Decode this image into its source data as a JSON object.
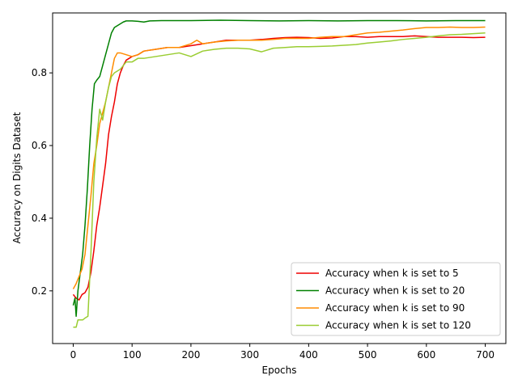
{
  "chart_data": {
    "type": "line",
    "title": "",
    "xlabel": "Epochs",
    "ylabel": "Accuracy on Digits Dataset",
    "xlim": [
      -35,
      735
    ],
    "ylim": [
      0.055,
      0.965
    ],
    "xticks": [
      0,
      100,
      200,
      300,
      400,
      500,
      600,
      700
    ],
    "yticks": [
      0.2,
      0.4,
      0.6,
      0.8
    ],
    "ytick_labels": [
      "0.2",
      "0.4",
      "0.6",
      "0.8"
    ],
    "grid": false,
    "legend_position": "lower-right",
    "series": [
      {
        "name": "Accuracy when k is set to 5",
        "color": "#ee0000",
        "points": [
          [
            0,
            0.19
          ],
          [
            5,
            0.18
          ],
          [
            10,
            0.175
          ],
          [
            15,
            0.19
          ],
          [
            20,
            0.195
          ],
          [
            25,
            0.21
          ],
          [
            30,
            0.25
          ],
          [
            35,
            0.31
          ],
          [
            40,
            0.38
          ],
          [
            45,
            0.43
          ],
          [
            50,
            0.49
          ],
          [
            55,
            0.55
          ],
          [
            60,
            0.63
          ],
          [
            65,
            0.68
          ],
          [
            70,
            0.72
          ],
          [
            75,
            0.77
          ],
          [
            80,
            0.8
          ],
          [
            85,
            0.82
          ],
          [
            90,
            0.835
          ],
          [
            100,
            0.845
          ],
          [
            110,
            0.85
          ],
          [
            120,
            0.86
          ],
          [
            140,
            0.865
          ],
          [
            160,
            0.87
          ],
          [
            180,
            0.87
          ],
          [
            200,
            0.875
          ],
          [
            220,
            0.88
          ],
          [
            240,
            0.885
          ],
          [
            260,
            0.89
          ],
          [
            280,
            0.89
          ],
          [
            300,
            0.89
          ],
          [
            320,
            0.892
          ],
          [
            340,
            0.895
          ],
          [
            360,
            0.897
          ],
          [
            380,
            0.898
          ],
          [
            400,
            0.897
          ],
          [
            420,
            0.895
          ],
          [
            440,
            0.896
          ],
          [
            460,
            0.9
          ],
          [
            480,
            0.9
          ],
          [
            500,
            0.898
          ],
          [
            520,
            0.9
          ],
          [
            540,
            0.9
          ],
          [
            560,
            0.9
          ],
          [
            580,
            0.902
          ],
          [
            600,
            0.9
          ],
          [
            620,
            0.898
          ],
          [
            640,
            0.898
          ],
          [
            660,
            0.898
          ],
          [
            680,
            0.897
          ],
          [
            700,
            0.898
          ]
        ]
      },
      {
        "name": "Accuracy when k is set to 20",
        "color": "#008000",
        "points": [
          [
            0,
            0.16
          ],
          [
            3,
            0.18
          ],
          [
            5,
            0.13
          ],
          [
            8,
            0.2
          ],
          [
            12,
            0.25
          ],
          [
            16,
            0.3
          ],
          [
            20,
            0.38
          ],
          [
            24,
            0.48
          ],
          [
            28,
            0.6
          ],
          [
            32,
            0.7
          ],
          [
            36,
            0.77
          ],
          [
            40,
            0.78
          ],
          [
            45,
            0.79
          ],
          [
            50,
            0.82
          ],
          [
            55,
            0.85
          ],
          [
            60,
            0.88
          ],
          [
            65,
            0.91
          ],
          [
            70,
            0.925
          ],
          [
            75,
            0.93
          ],
          [
            80,
            0.935
          ],
          [
            85,
            0.94
          ],
          [
            90,
            0.943
          ],
          [
            100,
            0.943
          ],
          [
            110,
            0.942
          ],
          [
            120,
            0.94
          ],
          [
            130,
            0.943
          ],
          [
            150,
            0.944
          ],
          [
            200,
            0.944
          ],
          [
            250,
            0.945
          ],
          [
            300,
            0.944
          ],
          [
            350,
            0.943
          ],
          [
            400,
            0.944
          ],
          [
            450,
            0.943
          ],
          [
            500,
            0.944
          ],
          [
            550,
            0.944
          ],
          [
            600,
            0.943
          ],
          [
            650,
            0.944
          ],
          [
            700,
            0.944
          ]
        ]
      },
      {
        "name": "Accuracy when k is set to 90",
        "color": "#ff8c00",
        "points": [
          [
            0,
            0.205
          ],
          [
            5,
            0.22
          ],
          [
            10,
            0.24
          ],
          [
            15,
            0.26
          ],
          [
            20,
            0.3
          ],
          [
            25,
            0.38
          ],
          [
            30,
            0.46
          ],
          [
            35,
            0.55
          ],
          [
            40,
            0.6
          ],
          [
            45,
            0.66
          ],
          [
            50,
            0.69
          ],
          [
            55,
            0.72
          ],
          [
            60,
            0.76
          ],
          [
            65,
            0.8
          ],
          [
            70,
            0.84
          ],
          [
            75,
            0.855
          ],
          [
            80,
            0.855
          ],
          [
            90,
            0.85
          ],
          [
            100,
            0.845
          ],
          [
            110,
            0.85
          ],
          [
            120,
            0.86
          ],
          [
            140,
            0.865
          ],
          [
            160,
            0.87
          ],
          [
            180,
            0.87
          ],
          [
            200,
            0.88
          ],
          [
            210,
            0.89
          ],
          [
            220,
            0.88
          ],
          [
            240,
            0.885
          ],
          [
            260,
            0.888
          ],
          [
            280,
            0.89
          ],
          [
            300,
            0.89
          ],
          [
            320,
            0.89
          ],
          [
            340,
            0.892
          ],
          [
            360,
            0.895
          ],
          [
            380,
            0.895
          ],
          [
            400,
            0.895
          ],
          [
            420,
            0.898
          ],
          [
            440,
            0.9
          ],
          [
            460,
            0.9
          ],
          [
            480,
            0.905
          ],
          [
            500,
            0.91
          ],
          [
            520,
            0.912
          ],
          [
            540,
            0.915
          ],
          [
            560,
            0.918
          ],
          [
            580,
            0.922
          ],
          [
            600,
            0.925
          ],
          [
            620,
            0.925
          ],
          [
            640,
            0.926
          ],
          [
            660,
            0.925
          ],
          [
            680,
            0.925
          ],
          [
            700,
            0.926
          ]
        ]
      },
      {
        "name": "Accuracy when k is set to 120",
        "color": "#9acd32",
        "points": [
          [
            0,
            0.1
          ],
          [
            5,
            0.1
          ],
          [
            8,
            0.12
          ],
          [
            12,
            0.12
          ],
          [
            16,
            0.12
          ],
          [
            20,
            0.125
          ],
          [
            25,
            0.13
          ],
          [
            30,
            0.3
          ],
          [
            35,
            0.5
          ],
          [
            40,
            0.62
          ],
          [
            45,
            0.7
          ],
          [
            50,
            0.67
          ],
          [
            55,
            0.72
          ],
          [
            60,
            0.76
          ],
          [
            65,
            0.79
          ],
          [
            70,
            0.8
          ],
          [
            80,
            0.81
          ],
          [
            90,
            0.83
          ],
          [
            100,
            0.83
          ],
          [
            110,
            0.84
          ],
          [
            120,
            0.84
          ],
          [
            140,
            0.845
          ],
          [
            160,
            0.85
          ],
          [
            180,
            0.855
          ],
          [
            200,
            0.845
          ],
          [
            220,
            0.86
          ],
          [
            240,
            0.865
          ],
          [
            260,
            0.868
          ],
          [
            280,
            0.868
          ],
          [
            300,
            0.866
          ],
          [
            320,
            0.858
          ],
          [
            340,
            0.868
          ],
          [
            360,
            0.87
          ],
          [
            380,
            0.872
          ],
          [
            400,
            0.872
          ],
          [
            420,
            0.873
          ],
          [
            440,
            0.874
          ],
          [
            460,
            0.876
          ],
          [
            480,
            0.878
          ],
          [
            500,
            0.882
          ],
          [
            520,
            0.885
          ],
          [
            540,
            0.888
          ],
          [
            560,
            0.892
          ],
          [
            580,
            0.895
          ],
          [
            600,
            0.898
          ],
          [
            620,
            0.902
          ],
          [
            640,
            0.905
          ],
          [
            660,
            0.906
          ],
          [
            680,
            0.908
          ],
          [
            700,
            0.91
          ]
        ]
      }
    ]
  }
}
